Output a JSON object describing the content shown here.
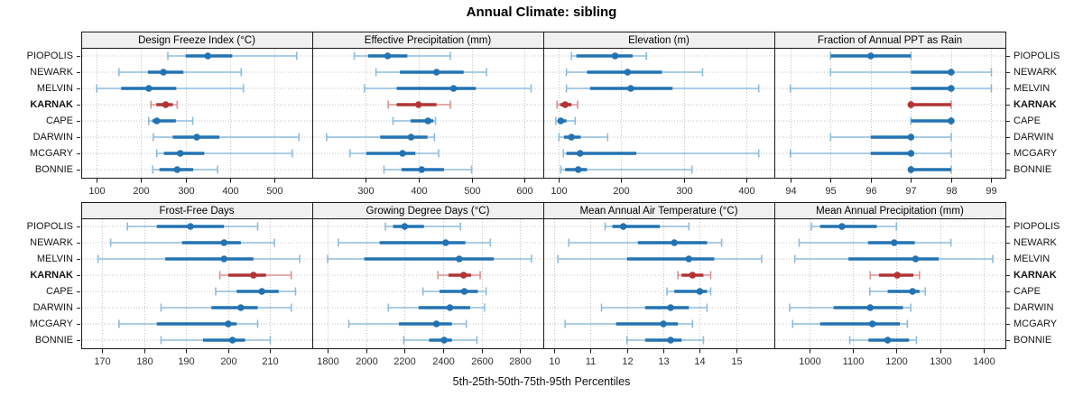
{
  "title": "Annual Climate: sibling",
  "caption": "5th-25th-50th-75th-95th Percentiles",
  "colors": {
    "normal": "#2373b3",
    "normal_light": "#8fbcdb",
    "highlight": "#b23434",
    "highlight_light": "#d89090",
    "header_bg": "#f0f0f0",
    "border": "#1a1a1a",
    "grid": "#c3c3c3"
  },
  "chart_data": {
    "type": "dotplot",
    "subtype": "percentile-whisker-trellis",
    "percentiles": [
      5,
      25,
      50,
      75,
      95
    ],
    "stations": [
      "PIOPOLIS",
      "NEWARK",
      "MELVIN",
      "KARNAK",
      "CAPE",
      "DARWIN",
      "MCGARY",
      "BONNIE"
    ],
    "highlight": "KARNAK",
    "legend_note": "values per station are [5th, 25th, 50th, 75th, 95th] percentiles",
    "rows": [
      {
        "panels": [
          {
            "title": "Design Freeze Index (°C)",
            "xlim": [
              65,
              585
            ],
            "ticks": [
              100,
              200,
              300,
              400,
              500
            ],
            "values": [
              [
                260,
                300,
                350,
                405,
                550
              ],
              [
                150,
                215,
                250,
                295,
                425
              ],
              [
                100,
                155,
                217,
                279,
                430
              ],
              [
                222,
                234,
                255,
                271,
                281
              ],
              [
                217,
                225,
                235,
                278,
                316
              ],
              [
                227,
                271,
                325,
                376,
                555
              ],
              [
                235,
                251,
                288,
                342,
                540
              ],
              [
                226,
                241,
                281,
                317,
                372
              ]
            ]
          },
          {
            "title": "Effective Precipitation (mm)",
            "xlim": [
              200,
              635
            ],
            "ticks": [
              300,
              400,
              500,
              600
            ],
            "values": [
              [
                279,
                305,
                342,
                379,
                460
              ],
              [
                320,
                365,
                434,
                485,
                528
              ],
              [
                298,
                359,
                466,
                508,
                612
              ],
              [
                343,
                359,
                400,
                434,
                460
              ],
              [
                352,
                385,
                418,
                428,
                432
              ],
              [
                227,
                328,
                386,
                417,
                430
              ],
              [
                271,
                302,
                370,
                394,
                438
              ],
              [
                335,
                368,
                406,
                448,
                500
              ]
            ]
          },
          {
            "title": "Elevation (m)",
            "xlim": [
              75,
              445
            ],
            "ticks": [
              100,
              200,
              300,
              400
            ],
            "values": [
              [
                120,
                128,
                190,
                218,
                240
              ],
              [
                112,
                145,
                210,
                265,
                330
              ],
              [
                112,
                150,
                215,
                282,
                420
              ],
              [
                97,
                102,
                110,
                120,
                130
              ],
              [
                95,
                98,
                103,
                112,
                126
              ],
              [
                100,
                108,
                120,
                135,
                178
              ],
              [
                107,
                112,
                134,
                224,
                420
              ],
              [
                103,
                110,
                131,
                145,
                313
              ]
            ]
          },
          {
            "title": "Fraction of Annual PPT as Rain",
            "xlim": [
              93.6,
              99.35
            ],
            "ticks": [
              94,
              95,
              96,
              97,
              98,
              99
            ],
            "values": [
              [
                95,
                95,
                96,
                97,
                97
              ],
              [
                95,
                97,
                98,
                98,
                99
              ],
              [
                94,
                97,
                98,
                98,
                99
              ],
              [
                97,
                97,
                97,
                98,
                98
              ],
              [
                97,
                97,
                98,
                98,
                98
              ],
              [
                95,
                96,
                97,
                97,
                98
              ],
              [
                94,
                96,
                97,
                97,
                98
              ],
              [
                97,
                97,
                97,
                98,
                98
              ]
            ]
          }
        ]
      },
      {
        "panels": [
          {
            "title": "Frost-Free Days",
            "xlim": [
              165,
              220
            ],
            "ticks": [
              170,
              180,
              190,
              200,
              210
            ],
            "values": [
              [
                176,
                183,
                191,
                199,
                207
              ],
              [
                172,
                189,
                199,
                203,
                211
              ],
              [
                169,
                185,
                199,
                206,
                217
              ],
              [
                198,
                200,
                206,
                209,
                215
              ],
              [
                197,
                202,
                208,
                212,
                216
              ],
              [
                184,
                196,
                203,
                207,
                215
              ],
              [
                174,
                183,
                200,
                202,
                207
              ],
              [
                184,
                194,
                201,
                204,
                210
              ]
            ]
          },
          {
            "title": "Growing Degree Days (°C)",
            "xlim": [
              1720,
              2920
            ],
            "ticks": [
              1800,
              2000,
              2200,
              2400,
              2600,
              2800
            ],
            "values": [
              [
                2100,
                2140,
                2200,
                2300,
                2490
              ],
              [
                1855,
                2070,
                2413,
                2515,
                2645
              ],
              [
                1800,
                1990,
                2483,
                2663,
                2858
              ],
              [
                2373,
                2428,
                2506,
                2545,
                2592
              ],
              [
                2295,
                2381,
                2510,
                2580,
                2623
              ],
              [
                2115,
                2272,
                2435,
                2540,
                2615
              ],
              [
                1910,
                2170,
                2365,
                2445,
                2520
              ],
              [
                2195,
                2327,
                2405,
                2445,
                2575
              ]
            ]
          },
          {
            "title": "Mean Annual Air Temperature (°C)",
            "xlim": [
              9.7,
              16.05
            ],
            "ticks": [
              10,
              11,
              12,
              13,
              14,
              15
            ],
            "values": [
              [
                11.4,
                11.6,
                11.9,
                12.9,
                13.7
              ],
              [
                10.4,
                12.3,
                13.3,
                14.2,
                14.6
              ],
              [
                10.1,
                12.0,
                13.7,
                14.4,
                15.7
              ],
              [
                13.4,
                13.5,
                13.8,
                14.1,
                14.3
              ],
              [
                13.1,
                13.3,
                14.0,
                14.2,
                14.3
              ],
              [
                11.3,
                12.5,
                13.2,
                13.7,
                14.2
              ],
              [
                10.3,
                11.7,
                13.0,
                13.4,
                13.8
              ],
              [
                12.0,
                12.5,
                13.2,
                13.5,
                14.1
              ]
            ]
          },
          {
            "title": "Mean Annual Precipitation (mm)",
            "xlim": [
              920,
              1450
            ],
            "ticks": [
              1000,
              1100,
              1200,
              1300,
              1400
            ],
            "values": [
              [
                1005,
                1025,
                1075,
                1155,
                1200
              ],
              [
                977,
                1135,
                1195,
                1242,
                1325
              ],
              [
                967,
                1090,
                1244,
                1297,
                1421
              ],
              [
                1140,
                1160,
                1202,
                1239,
                1253
              ],
              [
                1139,
                1180,
                1237,
                1253,
                1266
              ],
              [
                955,
                1056,
                1140,
                1215,
                1233
              ],
              [
                962,
                1025,
                1145,
                1208,
                1225
              ],
              [
                1093,
                1136,
                1180,
                1229,
                1246
              ]
            ]
          }
        ]
      }
    ]
  }
}
